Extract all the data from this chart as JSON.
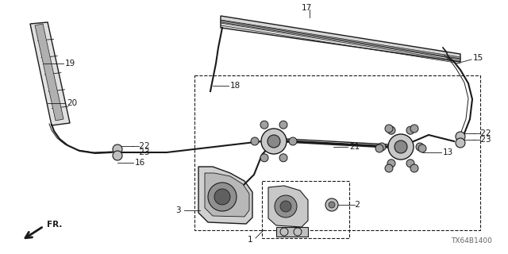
{
  "bg_color": "#ffffff",
  "line_color": "#1a1a1a",
  "diagram_code": "TX64B1400",
  "fig_w": 6.4,
  "fig_h": 3.2,
  "dpi": 100
}
